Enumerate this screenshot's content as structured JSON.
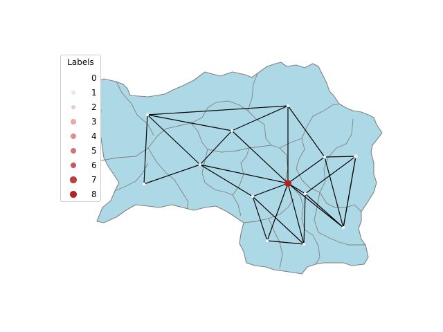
{
  "map": {
    "region_fill": "#add8e6",
    "region_border": "#808080",
    "edge_color": "#000000",
    "node_color_scale": [
      "#ffffff",
      "#b22222"
    ],
    "nodes": [
      {
        "id": "n1",
        "label": 0
      },
      {
        "id": "n2",
        "label": 0
      },
      {
        "id": "n3",
        "label": 0
      },
      {
        "id": "n4",
        "label": 0
      },
      {
        "id": "n5",
        "label": 0
      },
      {
        "id": "n6",
        "label": 0
      },
      {
        "id": "n7",
        "label": 0
      },
      {
        "id": "n8",
        "label": 8
      },
      {
        "id": "n9",
        "label": 0
      },
      {
        "id": "n10",
        "label": 0
      },
      {
        "id": "n11",
        "label": 0
      },
      {
        "id": "n12",
        "label": 0
      },
      {
        "id": "n13",
        "label": 0
      },
      {
        "id": "n14",
        "label": 1
      }
    ],
    "edges": [
      [
        "n1",
        "n2"
      ],
      [
        "n1",
        "n3"
      ],
      [
        "n1",
        "n4"
      ],
      [
        "n1",
        "n5"
      ],
      [
        "n2",
        "n3"
      ],
      [
        "n2",
        "n8"
      ],
      [
        "n2",
        "n6"
      ],
      [
        "n3",
        "n4"
      ],
      [
        "n3",
        "n8"
      ],
      [
        "n4",
        "n5"
      ],
      [
        "n4",
        "n8"
      ],
      [
        "n4",
        "n9"
      ],
      [
        "n6",
        "n8"
      ],
      [
        "n6",
        "n7"
      ],
      [
        "n6",
        "n11"
      ],
      [
        "n7",
        "n11"
      ],
      [
        "n8",
        "n9"
      ],
      [
        "n8",
        "n10"
      ],
      [
        "n8",
        "n11"
      ],
      [
        "n8",
        "n12"
      ],
      [
        "n8",
        "n13"
      ],
      [
        "n9",
        "n10"
      ],
      [
        "n9",
        "n12"
      ],
      [
        "n10",
        "n12"
      ],
      [
        "n11",
        "n13"
      ],
      [
        "n11",
        "n14"
      ],
      [
        "n12",
        "n13"
      ],
      [
        "n13",
        "n14"
      ]
    ]
  },
  "legend": {
    "title": "Labels",
    "items": [
      "0",
      "1",
      "2",
      "3",
      "4",
      "5",
      "6",
      "7",
      "8"
    ]
  }
}
